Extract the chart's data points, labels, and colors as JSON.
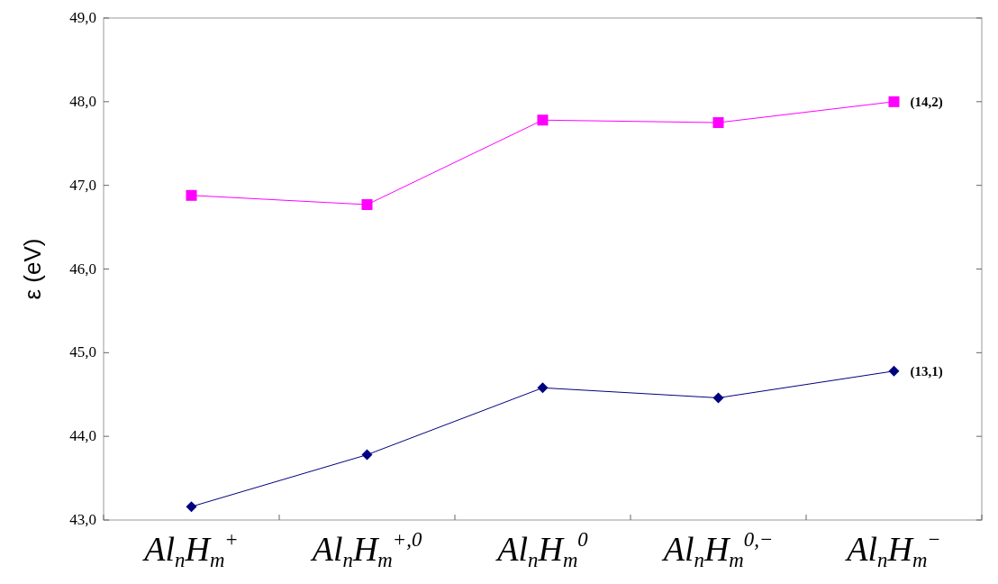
{
  "chart_data": {
    "type": "line",
    "ylabel": "ε (eV)",
    "categories": [
      "Al$_{n}$H$_{m}$$^{+}$",
      "Al$_{n}$H$_{m}$$^{+,0}$",
      "Al$_{n}$H$_{m}$$^{0}$",
      "Al$_{n}$H$_{m}$$^{0,−}$",
      "Al$_{n}$H$_{m}$$^{−}$"
    ],
    "series": [
      {
        "name": "(14,2)",
        "color": "#ff00ff",
        "marker": "square",
        "values": [
          46.88,
          46.77,
          47.78,
          47.75,
          48.0
        ]
      },
      {
        "name": "(13,1)",
        "color": "#000080",
        "marker": "diamond",
        "values": [
          43.16,
          43.78,
          44.58,
          44.46,
          44.78
        ]
      }
    ],
    "ylim": [
      43,
      49
    ],
    "yticks": [
      {
        "value": 43,
        "label": "43,0"
      },
      {
        "value": 44,
        "label": "44,0"
      },
      {
        "value": 45,
        "label": "45,0"
      },
      {
        "value": 46,
        "label": "46,0"
      },
      {
        "value": 47,
        "label": "47,0"
      },
      {
        "value": 48,
        "label": "48,0"
      },
      {
        "value": 49,
        "label": "49,0"
      }
    ],
    "grid": false
  }
}
